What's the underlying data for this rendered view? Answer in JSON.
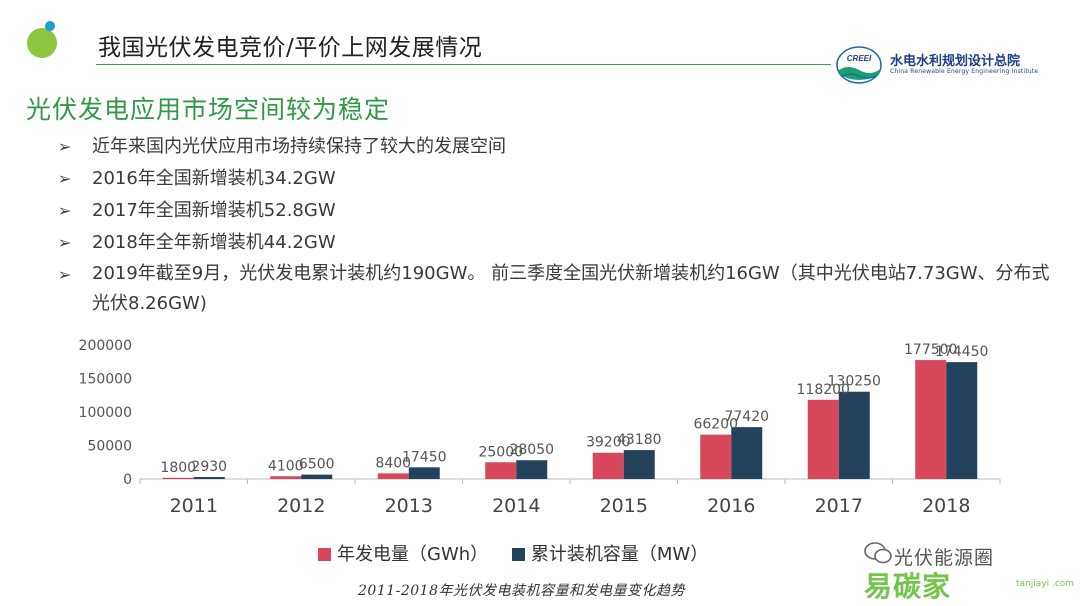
{
  "header": {
    "title": "我国光伏发电竞价/平价上网发展情况",
    "org_name": "水电水利规划设计总院",
    "org_name_en": "China Renewable Energy Engineering Institute",
    "org_logo_text": "CREEI"
  },
  "section_title": "光伏发电应用市场空间较为稳定",
  "bullet_marker": "➢",
  "bullets": [
    "近年来国内光伏应用市场持续保持了较大的发展空间",
    "2016年全国新增装机34.2GW",
    "2017年全国新增装机52.8GW",
    "2018年全年新增装机44.2GW",
    "2019年截至9月，光伏发电累计装机约190GW。 前三季度全国光伏新增装机约16GW（其中光伏电站7.73GW、分布式光伏8.26GW)"
  ],
  "chart_data": {
    "type": "bar",
    "categories": [
      "2011",
      "2012",
      "2013",
      "2014",
      "2015",
      "2016",
      "2017",
      "2018"
    ],
    "series": [
      {
        "name": "年发电量（GWh）",
        "color": "#d6485a",
        "values": [
          1800,
          4100,
          8400,
          25000,
          39200,
          66200,
          118200,
          177500
        ]
      },
      {
        "name": "累计装机容量（MW）",
        "color": "#25425c",
        "values": [
          2930,
          6500,
          17450,
          28050,
          43180,
          77420,
          130250,
          174450
        ]
      }
    ],
    "yticks": [
      "0",
      "50000",
      "100000",
      "150000",
      "200000"
    ],
    "ylim": [
      0,
      200000
    ],
    "grid": false,
    "legend_position": "bottom",
    "caption": "2011-2018年光伏发电装机容量和发电量变化趋势"
  },
  "watermark": {
    "line1": "光伏能源圈",
    "line2": "易碳家",
    "site": "tanjiayi .com"
  }
}
